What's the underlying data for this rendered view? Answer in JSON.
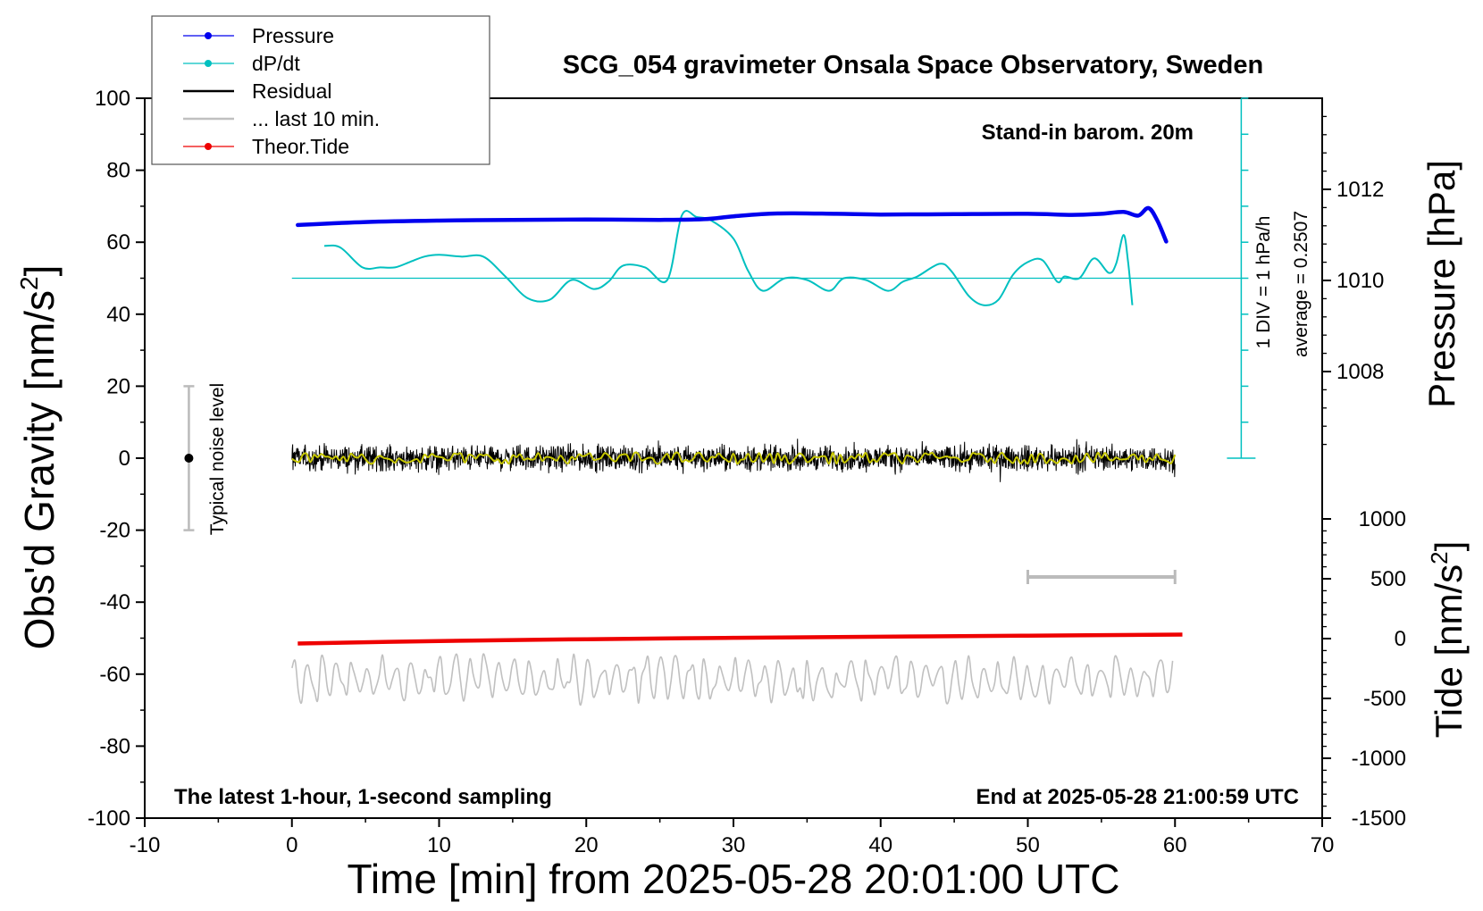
{
  "chart_data": {
    "type": "line",
    "title": "SCG_054 gravimeter Onsala Space Observatory, Sweden",
    "xlabel": "Time [min] from 2025-05-28 20:01:00 UTC",
    "ylabel_left": "Obs'd Gravity [nm/s",
    "ylabel_left_sup": "2",
    "ylabel_left_end": "]",
    "ylabel_right_pressure": "Pressure [hPa]",
    "ylabel_right_tide": "Tide [nm/s",
    "ylabel_right_tide_sup": "2",
    "ylabel_right_tide_end": "]",
    "xlim": [
      -10,
      70
    ],
    "ylim": [
      -100,
      100
    ],
    "x_ticks": [
      "-10",
      "0",
      "10",
      "20",
      "30",
      "40",
      "50",
      "60",
      "70"
    ],
    "y_ticks": [
      "100",
      "80",
      "60",
      "40",
      "20",
      "0",
      "-20",
      "-40",
      "-60",
      "-80",
      "-100"
    ],
    "pressure_axis": {
      "ticks": [
        "1012",
        "1010",
        "1008"
      ],
      "values": [
        1012,
        1010,
        1008
      ]
    },
    "tide_axis": {
      "ticks": [
        "1000",
        "500",
        "0",
        "-500",
        "-1000",
        "-1500"
      ],
      "values": [
        1000,
        500,
        0,
        -500,
        -1000,
        -1500
      ]
    },
    "legend": {
      "placement": "top-left",
      "entries": [
        {
          "label": "Pressure",
          "color": "#0000ee",
          "marker": true
        },
        {
          "label": "dP/dt",
          "color": "#00c0c0",
          "marker": true
        },
        {
          "label": "Residual",
          "color": "#000000",
          "marker": false
        },
        {
          "label": "... last 10 min.",
          "color": "#c0c0c0",
          "marker": false
        },
        {
          "label": "Theor.Tide",
          "color": "#ee0000",
          "marker": true
        }
      ]
    },
    "annotations": {
      "barometer": "Stand-in barom. 20m",
      "bottom_left": "The latest 1-hour, 1-second sampling",
      "bottom_right": "End at 2025-05-28 21:00:59 UTC",
      "noise": "Typical noise level",
      "div": "1 DIV = 1 hPa/h",
      "average": "average = 0.2507"
    },
    "noise_bar": {
      "x": -7,
      "center": 0,
      "range": [
        -20,
        20
      ]
    },
    "ten_min_bar": {
      "x": [
        50,
        60
      ],
      "y": -33
    },
    "series": [
      {
        "name": "Pressure",
        "color": "#0000ee",
        "x": [
          0.4,
          5,
          10,
          15,
          20,
          25,
          28,
          30,
          33,
          37,
          40,
          45,
          50,
          53,
          55,
          56.5,
          57.5,
          58.2,
          58.8,
          59.4
        ],
        "y": [
          64.8,
          65.6,
          66.0,
          66.2,
          66.3,
          66.2,
          66.4,
          67.2,
          68.0,
          67.9,
          67.7,
          67.8,
          67.9,
          67.6,
          67.9,
          68.4,
          67.4,
          69.5,
          66.0,
          60.2
        ]
      },
      {
        "name": "dP/dt",
        "color": "#00c0c0",
        "x": [
          2.2,
          3.3,
          4.8,
          6,
          7,
          8,
          9,
          10,
          11.5,
          13,
          14.5,
          16,
          17.5,
          19,
          20.5,
          21.5,
          22.5,
          24,
          25.5,
          26.5,
          27.5,
          28.5,
          30,
          31,
          32,
          33.5,
          35,
          36.5,
          37.5,
          39,
          40.5,
          41.5,
          42.5,
          44,
          44.8,
          46,
          47,
          48,
          49,
          50,
          51,
          52,
          52.5,
          53.5,
          54.5,
          55.5,
          56,
          56.5,
          56.8,
          57.1
        ],
        "y": [
          59,
          58.5,
          53,
          53,
          53,
          54.5,
          56,
          56.5,
          56,
          56,
          50.5,
          44.5,
          44,
          49.5,
          47,
          49,
          53.5,
          53,
          49.5,
          67.5,
          67,
          66,
          61,
          52,
          46.5,
          50,
          49.5,
          46.5,
          50,
          49.5,
          46.5,
          49,
          50.5,
          54,
          52,
          45,
          42.5,
          44,
          51,
          54.5,
          55,
          49,
          50.5,
          50,
          55.5,
          51.5,
          54,
          62,
          55,
          42.5
        ]
      },
      {
        "name": "Residual",
        "color": "#000000",
        "x_range": [
          0,
          60
        ],
        "center": 0,
        "amplitude": 5
      },
      {
        "name": "Residual (smoothed)",
        "color": "#c8c800",
        "x_range": [
          0,
          60
        ],
        "center": 0,
        "amplitude": 1.5
      },
      {
        "name": "... last 10 min.",
        "color": "#c0c0c0",
        "x_range": [
          0,
          60
        ],
        "center": -61.5,
        "amplitude": 6
      },
      {
        "name": "Theor.Tide",
        "color": "#ee0000",
        "x": [
          0.4,
          10,
          20,
          30,
          40,
          50,
          60.5
        ],
        "y": [
          -51.5,
          -50.8,
          -50.3,
          -49.9,
          -49.6,
          -49.3,
          -49.0
        ]
      }
    ],
    "dpdt_reference_line": {
      "y": 50,
      "x_range": [
        0,
        64.5
      ]
    },
    "grid": false
  }
}
